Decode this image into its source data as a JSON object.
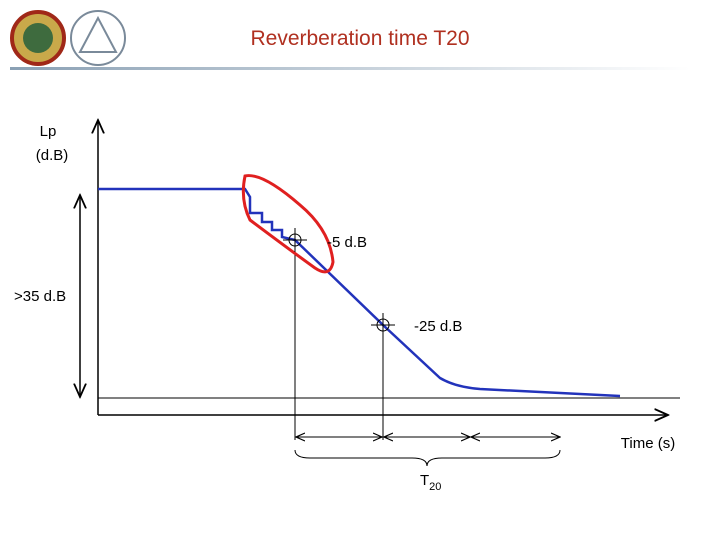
{
  "header": {
    "title": "Reverberation time T20"
  },
  "axes": {
    "y_label": [
      "Lp",
      "(d.B)"
    ],
    "x_label": "Time (s)"
  },
  "annotations": {
    "first_point": "-5 d.B",
    "second_point": "-25 d.B",
    "range": ">35 d.B"
  },
  "result": {
    "symbol": "T",
    "subscript": "20"
  }
}
